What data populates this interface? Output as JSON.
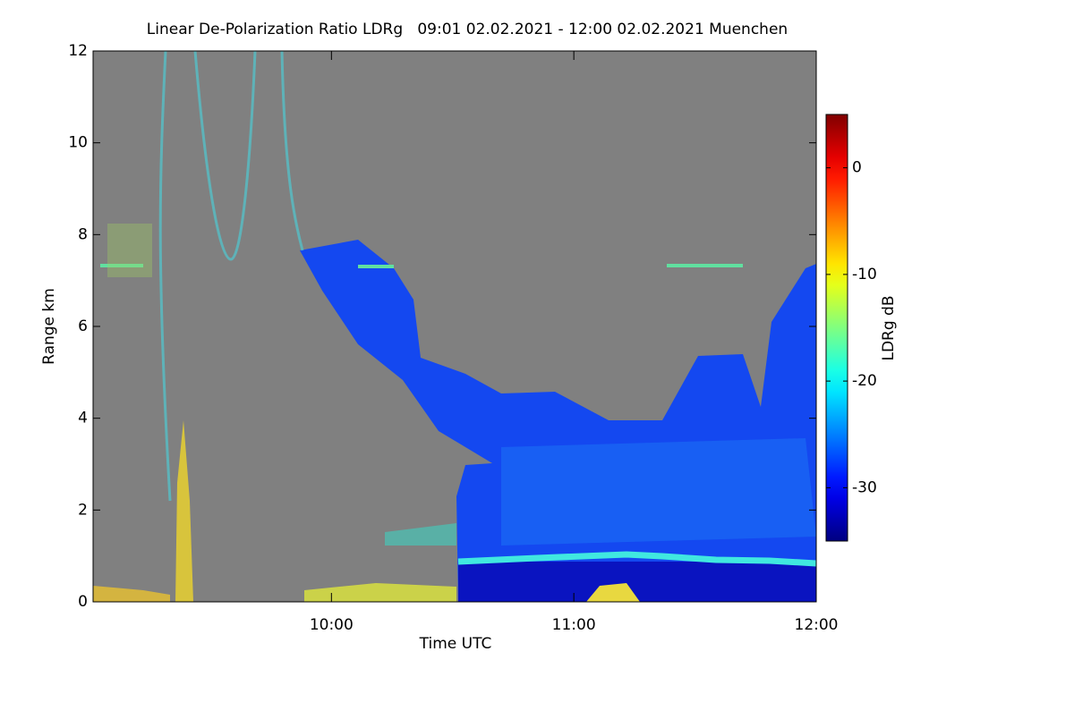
{
  "chart_data": {
    "type": "heatmap",
    "title": "Linear De-Polarization Ratio LDRg   09:01 02.02.2021 - 12:00 02.02.2021 Muenchen",
    "x_label": "Time UTC",
    "y_label": "Range km",
    "xlim": [
      "09:01",
      "12:00"
    ],
    "xticks": [
      "10:00",
      "11:00",
      "12:00"
    ],
    "ylim": [
      0,
      12
    ],
    "yticks": [
      0,
      2,
      4,
      6,
      8,
      10,
      12
    ],
    "colorbar": {
      "label": "LDRg dB",
      "lim": [
        -35,
        5
      ],
      "ticks": [
        -30,
        -20,
        -10,
        0
      ],
      "colormap": "jet"
    },
    "background": "#808080"
  }
}
